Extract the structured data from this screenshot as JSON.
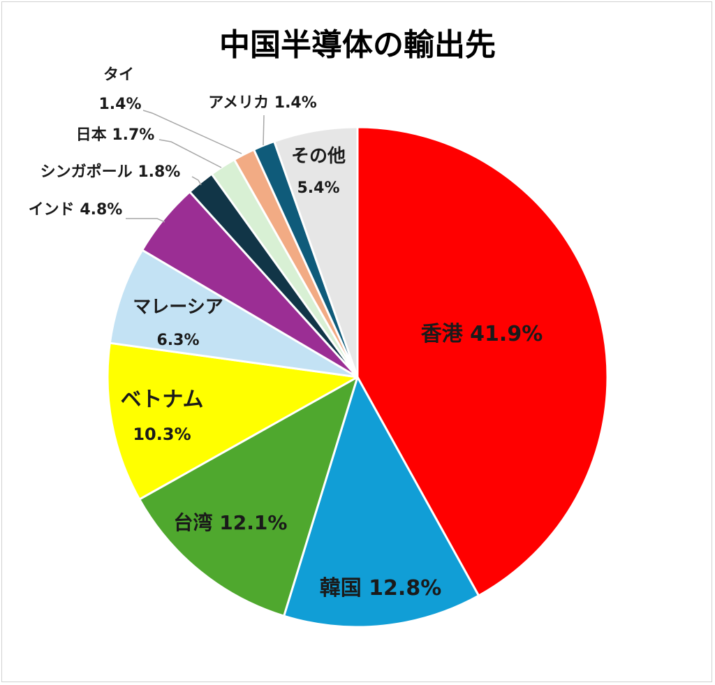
{
  "chart_data": {
    "type": "pie",
    "title": "中国半導体の輸出先",
    "slices": [
      {
        "name": "香港",
        "value": 41.9,
        "name_text": "香港",
        "value_text": "41.9%",
        "color": "#ff0000"
      },
      {
        "name": "韓国",
        "value": 12.8,
        "name_text": "韓国",
        "value_text": "12.8%",
        "color": "#119ed6"
      },
      {
        "name": "台湾",
        "value": 12.1,
        "name_text": "台湾",
        "value_text": "12.1%",
        "color": "#4fa82e"
      },
      {
        "name": "ベトナム",
        "value": 10.3,
        "name_text": "ベトナム",
        "value_text": "10.3%",
        "color": "#ffff00"
      },
      {
        "name": "マレーシア",
        "value": 6.3,
        "name_text": "マレーシア",
        "value_text": "6.3%",
        "color": "#c3e2f4"
      },
      {
        "name": "インド",
        "value": 4.8,
        "name_text": "インド",
        "value_text": "4.8%",
        "color": "#9b2e94"
      },
      {
        "name": "シンガポール",
        "value": 1.8,
        "name_text": "シンガポール",
        "value_text": "1.8%",
        "color": "#113547"
      },
      {
        "name": "日本",
        "value": 1.7,
        "name_text": "日本",
        "value_text": "1.7%",
        "color": "#d8f0d4"
      },
      {
        "name": "タイ",
        "value": 1.4,
        "name_text": "タイ",
        "value_text": "1.4%",
        "color": "#f2ab84"
      },
      {
        "name": "アメリカ",
        "value": 1.4,
        "name_text": "アメリカ",
        "value_text": "1.4%",
        "color": "#0f5b7a"
      },
      {
        "name": "その他",
        "value": 5.4,
        "name_text": "その他",
        "value_text": "5.4%",
        "color": "#e6e6e6"
      }
    ]
  }
}
